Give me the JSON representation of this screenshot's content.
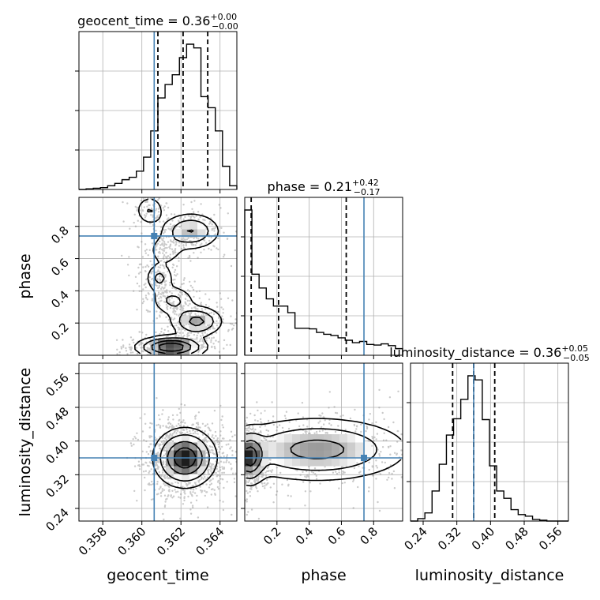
{
  "chart_data": {
    "type": "corner",
    "parameters": [
      {
        "name": "geocent_time",
        "axis_label": "geocent_time",
        "title_prefix": "geocent_time = 0.36",
        "title_plus": "+0.00",
        "title_minus": "−0.00",
        "range": [
          0.35678,
          0.36486
        ],
        "ticks": [
          0.358,
          0.36,
          0.362,
          0.364
        ],
        "tick_labels": [
          "0.358",
          "0.360",
          "0.362",
          "0.364"
        ],
        "truth": 0.36063,
        "quantiles": [
          0.36082,
          0.36211,
          0.36337
        ],
        "hist_edges": [
          0.35678,
          0.36486
        ],
        "hist_counts": [
          0,
          1,
          2,
          3,
          6,
          10,
          16,
          20,
          30,
          53,
          96,
          150,
          172,
          188,
          216,
          238,
          232,
          152,
          134,
          96,
          38,
          6
        ]
      },
      {
        "name": "phase",
        "axis_label": "phase",
        "title_prefix": "phase = 0.21",
        "title_plus": "+0.42",
        "title_minus": "−0.17",
        "range": [
          0.0,
          0.98
        ],
        "ticks": [
          0.2,
          0.4,
          0.6,
          0.8
        ],
        "tick_labels": [
          "0.2",
          "0.4",
          "0.6",
          "0.8"
        ],
        "truth": 0.74,
        "quantiles": [
          0.04,
          0.21,
          0.63
        ],
        "hist_edges": [
          0.0,
          0.98
        ],
        "hist_counts": [
          242,
          135,
          112,
          94,
          82,
          82,
          71,
          45,
          45,
          44,
          38,
          35,
          33,
          29,
          25,
          21,
          23,
          18,
          17,
          19,
          16,
          11
        ]
      },
      {
        "name": "luminosity_distance",
        "axis_label": "luminosity_distance",
        "title_prefix": "luminosity_distance = 0.36",
        "title_plus": "+0.05",
        "title_minus": "−0.05",
        "range": [
          0.21,
          0.585
        ],
        "ticks": [
          0.24,
          0.32,
          0.4,
          0.48,
          0.56
        ],
        "tick_labels": [
          "0.24",
          "0.32",
          "0.40",
          "0.48",
          "0.56"
        ],
        "truth": 0.36,
        "quantiles": [
          0.31,
          0.36,
          0.41
        ],
        "hist_edges": [
          0.21,
          0.585
        ],
        "hist_counts": [
          0,
          3,
          10,
          37,
          70,
          106,
          126,
          150,
          179,
          174,
          125,
          68,
          37,
          28,
          14,
          8,
          6,
          2,
          1,
          0,
          0,
          0
        ]
      }
    ],
    "truth_color": "#4682b4",
    "contour_color": "#000000",
    "grid": true,
    "blobs": {
      "geocent_time|phase": [
        {
          "x": 0.3604,
          "y": 0.9,
          "sx": 0.0004,
          "sy": 0.05,
          "w": 0.09
        },
        {
          "x": 0.3625,
          "y": 0.77,
          "sx": 0.0008,
          "sy": 0.06,
          "w": 0.16
        },
        {
          "x": 0.3612,
          "y": 0.65,
          "sx": 0.0005,
          "sy": 0.05,
          "w": 0.07
        },
        {
          "x": 0.3609,
          "y": 0.48,
          "sx": 0.0004,
          "sy": 0.05,
          "w": 0.1
        },
        {
          "x": 0.3616,
          "y": 0.34,
          "sx": 0.0006,
          "sy": 0.05,
          "w": 0.1
        },
        {
          "x": 0.3628,
          "y": 0.21,
          "sx": 0.0007,
          "sy": 0.05,
          "w": 0.18
        },
        {
          "x": 0.3615,
          "y": 0.05,
          "sx": 0.0009,
          "sy": 0.035,
          "w": 0.3
        }
      ],
      "geocent_time|luminosity_distance": [
        {
          "x": 0.3622,
          "y": 0.36,
          "sx": 0.0008,
          "sy": 0.035,
          "w": 1.0
        }
      ],
      "phase|luminosity_distance": [
        {
          "x": 0.03,
          "y": 0.36,
          "sx": 0.05,
          "sy": 0.032,
          "w": 0.55
        },
        {
          "x": 0.45,
          "y": 0.38,
          "sx": 0.3,
          "sy": 0.04,
          "w": 0.45
        }
      ]
    }
  }
}
